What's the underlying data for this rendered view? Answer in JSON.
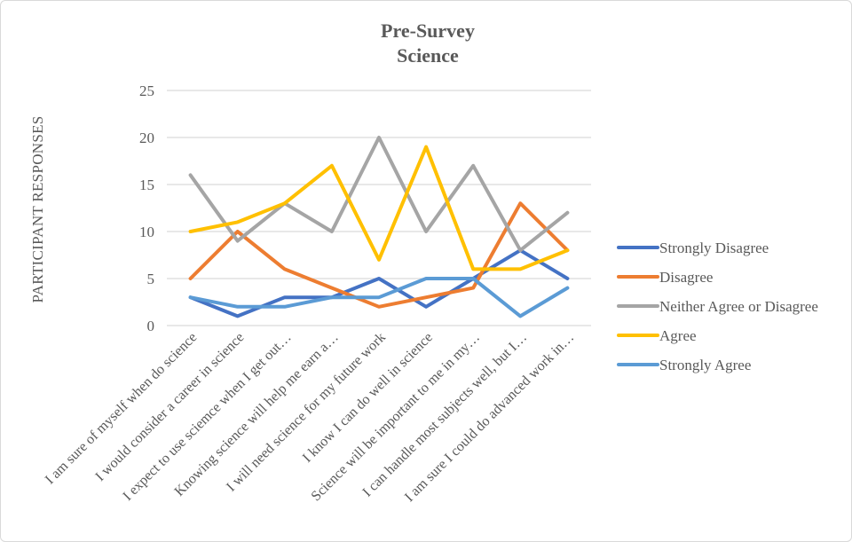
{
  "chart_data": {
    "type": "line",
    "title": [
      "Pre-Survey",
      "Science"
    ],
    "ylabel": "PARTICIPANT RESPONSES",
    "xlabel": "",
    "ylim": [
      0,
      25
    ],
    "yticks": [
      0,
      5,
      10,
      15,
      20,
      25
    ],
    "grid": true,
    "legend_position": "right",
    "categories": [
      "I am sure of myself when  do science",
      "I would consider a career in science",
      "I expect to use sciemce when I get out…",
      "Knowing science will help me earn a…",
      "I will need science for my future work",
      "I know I can do well in science",
      "Science will be important to me in my…",
      "I can handle most subjects well, but I…",
      "I am sure I could do advanced work in…"
    ],
    "series": [
      {
        "name": "Strongly Disagree",
        "color": "#4472c4",
        "values": [
          3,
          1,
          3,
          3,
          5,
          2,
          5,
          8,
          5
        ]
      },
      {
        "name": "Disagree",
        "color": "#ed7d31",
        "values": [
          5,
          10,
          6,
          4,
          2,
          3,
          4,
          13,
          8
        ]
      },
      {
        "name": "Neither Agree or Disagree",
        "color": "#a5a5a5",
        "values": [
          16,
          9,
          13,
          10,
          20,
          10,
          17,
          8,
          12
        ]
      },
      {
        "name": "Agree",
        "color": "#ffc000",
        "values": [
          10,
          11,
          13,
          17,
          7,
          19,
          6,
          6,
          8
        ]
      },
      {
        "name": "Strongly Agree",
        "color": "#5b9bd5",
        "values": [
          3,
          2,
          2,
          3,
          3,
          5,
          5,
          1,
          4
        ]
      }
    ]
  }
}
